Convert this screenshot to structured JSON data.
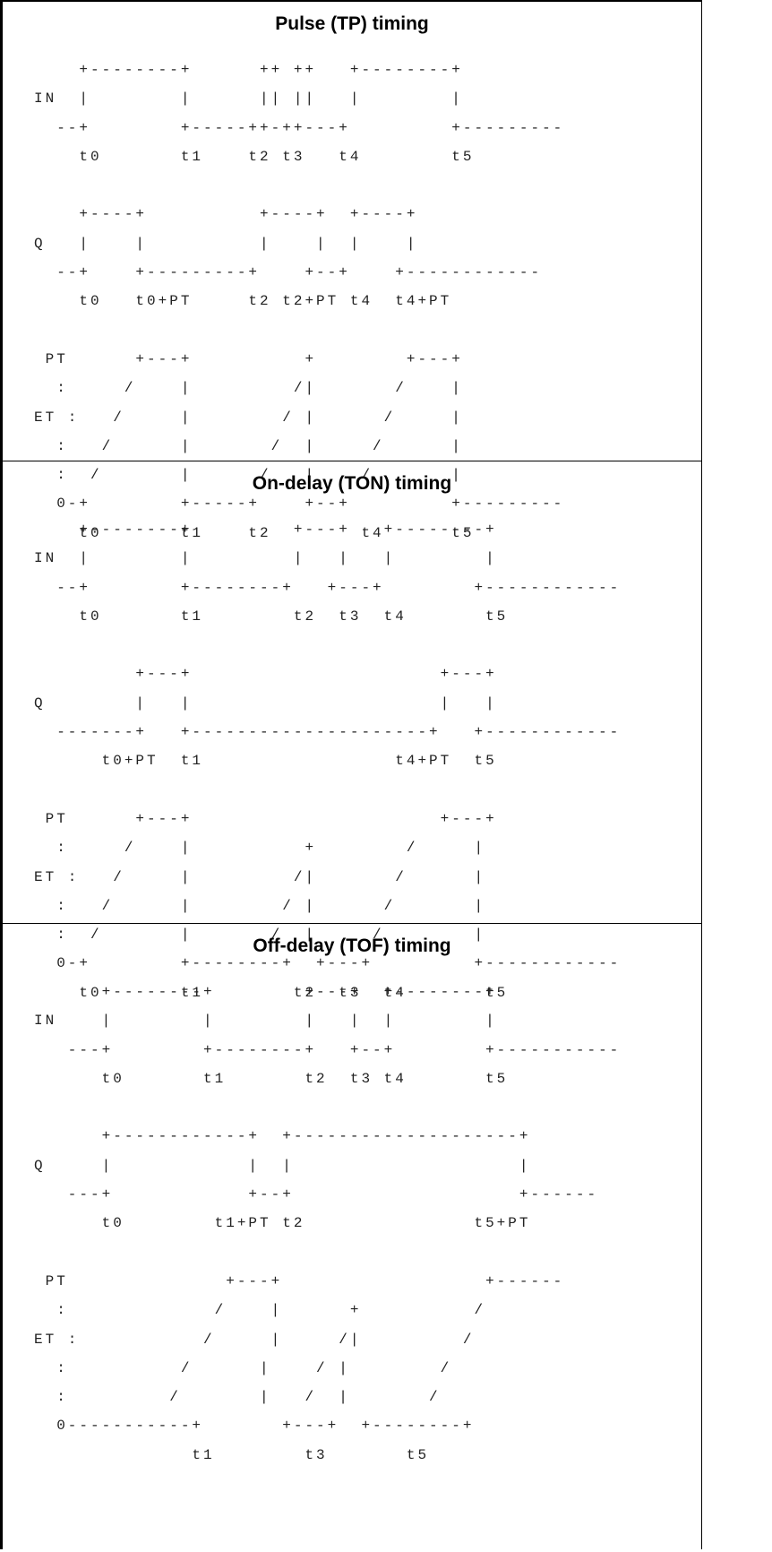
{
  "sections": [
    {
      "title": "Pulse (TP) timing",
      "lines": [
        "    +--------+      ++ ++   +--------+",
        "IN  |        |      || ||   |        |",
        "  --+        +-----++-++---+         +---------",
        "    t0       t1    t2 t3   t4        t5",
        "",
        "    +----+          +----+  +----+",
        "Q   |    |          |    |  |    |",
        "  --+    +---------+    +--+    +------------",
        "    t0   t0+PT     t2 t2+PT t4  t4+PT",
        "",
        " PT      +---+          +        +---+",
        "  :     /    |         /|       /    |",
        "ET :   /     |        / |      /     |",
        "  :   /      |       /  |     /      |",
        "  :  /       |      /   |    /       |",
        "  0-+        +-----+    +--+         +---------",
        "    t0       t1    t2        t4      t5"
      ]
    },
    {
      "title": "On-delay (TON) timing",
      "lines": [
        "    +--------+         +---+   +--------+",
        "IN  |        |         |   |   |        |",
        "  --+        +--------+   +---+        +------------",
        "    t0       t1        t2  t3  t4       t5",
        "",
        "         +---+                      +---+",
        "Q        |   |                      |   |",
        "  -------+   +---------------------+   +------------",
        "      t0+PT  t1                 t4+PT  t5",
        "",
        " PT      +---+                      +---+",
        "  :     /    |          +        /     |",
        "ET :   /     |         /|       /      |",
        "  :   /      |        / |      /       |",
        "  :  /       |       /  |     /        |",
        "  0-+        +--------+  +---+         +------------",
        "    t0       t1        t2  t3  t4       t5"
      ]
    },
    {
      "title": "Off-delay (TOF) timing",
      "lines": [
        "      +--------+        +---+  +--------+",
        "IN    |        |        |   |  |        |",
        "   ---+        +--------+   +--+        +-----------",
        "      t0       t1       t2  t3 t4       t5",
        "",
        "      +------------+  +--------------------+",
        "Q     |            |  |                    |",
        "   ---+            +--+                    +------",
        "      t0        t1+PT t2               t5+PT",
        "",
        " PT              +---+                  +------",
        "  :             /    |      +          /",
        "ET :           /     |     /|         /",
        "  :          /      |    / |        /",
        "  :         /       |   /  |       /",
        "  0-----------+       +---+  +--------+",
        "              t1        t3       t5"
      ]
    }
  ]
}
